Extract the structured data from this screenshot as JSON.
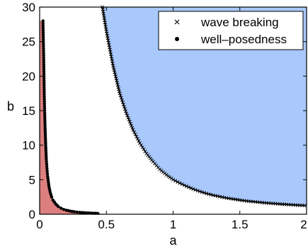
{
  "chart_data": {
    "type": "area",
    "title": "",
    "xlabel": "a",
    "ylabel": "b",
    "xlim": [
      0,
      2
    ],
    "ylim": [
      0,
      30
    ],
    "xticks": [
      0,
      0.5,
      1,
      1.5,
      2
    ],
    "xtick_labels": [
      "0",
      "0.5",
      "1",
      "1.5",
      "2"
    ],
    "yticks": [
      0,
      5,
      10,
      15,
      20,
      25,
      30
    ],
    "ytick_labels": [
      "0",
      "5",
      "10",
      "15",
      "20",
      "25",
      "30"
    ],
    "grid": false,
    "legend_position": "top-right",
    "series": [
      {
        "name": "wave breaking",
        "marker": "x",
        "fill_region": "above curve",
        "fill_color": "#a9c8fb",
        "x": [
          0.47,
          0.5,
          0.55,
          0.6,
          0.65,
          0.7,
          0.75,
          0.8,
          0.85,
          0.9,
          0.95,
          1.0,
          1.05,
          1.1,
          1.15,
          1.2,
          1.25,
          1.3,
          1.35,
          1.4,
          1.45,
          1.5,
          1.55,
          1.6,
          1.65,
          1.7,
          1.75,
          1.8,
          1.85,
          1.9,
          1.95,
          2.0
        ],
        "y": [
          30.0,
          26.5,
          21.5,
          17.5,
          14.6,
          12.2,
          10.3,
          8.8,
          7.6,
          6.5,
          5.7,
          5.0,
          4.5,
          4.05,
          3.65,
          3.3,
          3.0,
          2.75,
          2.55,
          2.35,
          2.2,
          2.05,
          1.92,
          1.82,
          1.72,
          1.63,
          1.55,
          1.48,
          1.41,
          1.35,
          1.3,
          1.25
        ]
      },
      {
        "name": "well–posedness",
        "marker": "o",
        "fill_region": "below curve",
        "fill_color": "#dd7f7f",
        "x": [
          0.025,
          0.03,
          0.035,
          0.04,
          0.045,
          0.05,
          0.055,
          0.06,
          0.07,
          0.08,
          0.09,
          0.1,
          0.12,
          0.14,
          0.16,
          0.18,
          0.2,
          0.23,
          0.26,
          0.3,
          0.35,
          0.4,
          0.45
        ],
        "y": [
          28.0,
          23.0,
          17.0,
          13.0,
          10.2,
          8.0,
          6.6,
          5.5,
          4.0,
          3.1,
          2.5,
          2.05,
          1.5,
          1.12,
          0.88,
          0.7,
          0.58,
          0.45,
          0.36,
          0.27,
          0.2,
          0.15,
          0.12
        ]
      }
    ]
  }
}
